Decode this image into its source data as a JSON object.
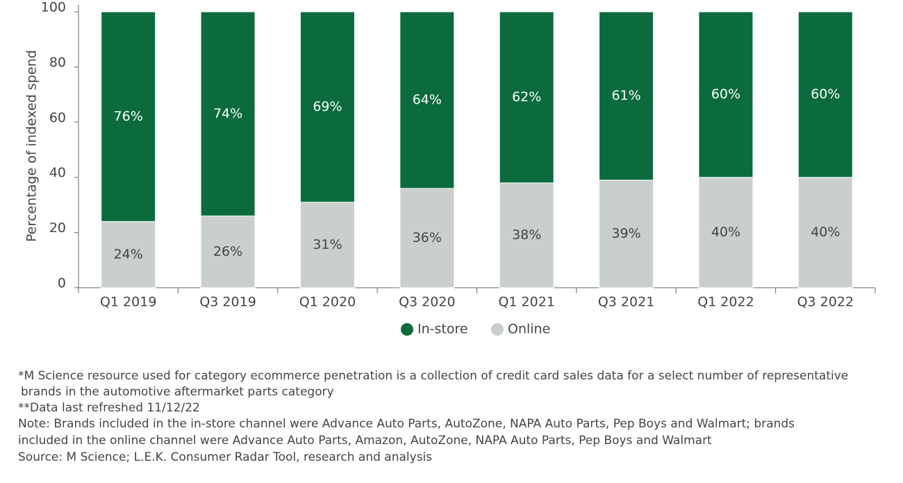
{
  "chart_data": {
    "type": "stacked_bar",
    "y_label": "Percentage of indexed spend",
    "categories": [
      "Q1 2019",
      "Q3 2019",
      "Q1 2020",
      "Q3 2020",
      "Q1 2021",
      "Q3 2021",
      "Q1 2022",
      "Q3 2022"
    ],
    "series": [
      {
        "name": "In-store",
        "color": "#0b6b3d",
        "values": [
          76,
          74,
          69,
          64,
          62,
          61,
          60,
          60
        ],
        "value_labels": [
          "76%",
          "74%",
          "69%",
          "64%",
          "62%",
          "61%",
          "60%",
          "60%"
        ]
      },
      {
        "name": "Online",
        "color": "#c8cfcc",
        "values": [
          24,
          26,
          31,
          36,
          38,
          39,
          40,
          40
        ],
        "value_labels": [
          "24%",
          "26%",
          "31%",
          "36%",
          "38%",
          "39%",
          "40%",
          "40%"
        ]
      }
    ],
    "ylim": [
      0,
      100
    ],
    "yticks": [
      0,
      20,
      40,
      60,
      80,
      100
    ],
    "grid": false,
    "legend": "bottom"
  },
  "notes": [
    "*M Science resource used for category ecommerce penetration is a collection of credit card sales data for a select number of representative",
    "brands in the automotive aftermarket parts category",
    "**Data last refreshed 11/12/22",
    "Note: Brands included in the in-store channel were Advance Auto Parts, AutoZone, NAPA Auto Parts, Pep Boys and Walmart; brands",
    "included in the online channel were Advance Auto Parts, Amazon, AutoZone, NAPA Auto Parts, Pep Boys and Walmart",
    "Source: M Science; L.E.K. Consumer Radar Tool, research and analysis"
  ]
}
